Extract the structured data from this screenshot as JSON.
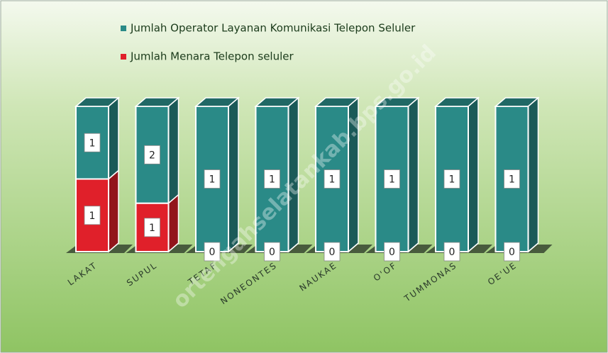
{
  "chart_data": {
    "type": "stacked-bar-3d",
    "watermark": "ortengahselatankab.bps.go.id",
    "categories": [
      "LAKAT",
      "SUPUL",
      "TETAF",
      "NONEONTES",
      "NAUKAE",
      "O'OF",
      "TUMMONAS",
      "OE'UE"
    ],
    "series": [
      {
        "name": "Jumlah Operator Layanan Komunikasi Telepon Seluler",
        "color": "#2a8a87",
        "values": [
          1,
          2,
          1,
          1,
          1,
          1,
          1,
          1
        ]
      },
      {
        "name": "Jumlah Menara Telepon seluler",
        "color": "#e0202a",
        "values": [
          1,
          1,
          0,
          0,
          0,
          0,
          0,
          0
        ]
      }
    ],
    "stack_order": "series-1-bottom",
    "legend": "top"
  }
}
